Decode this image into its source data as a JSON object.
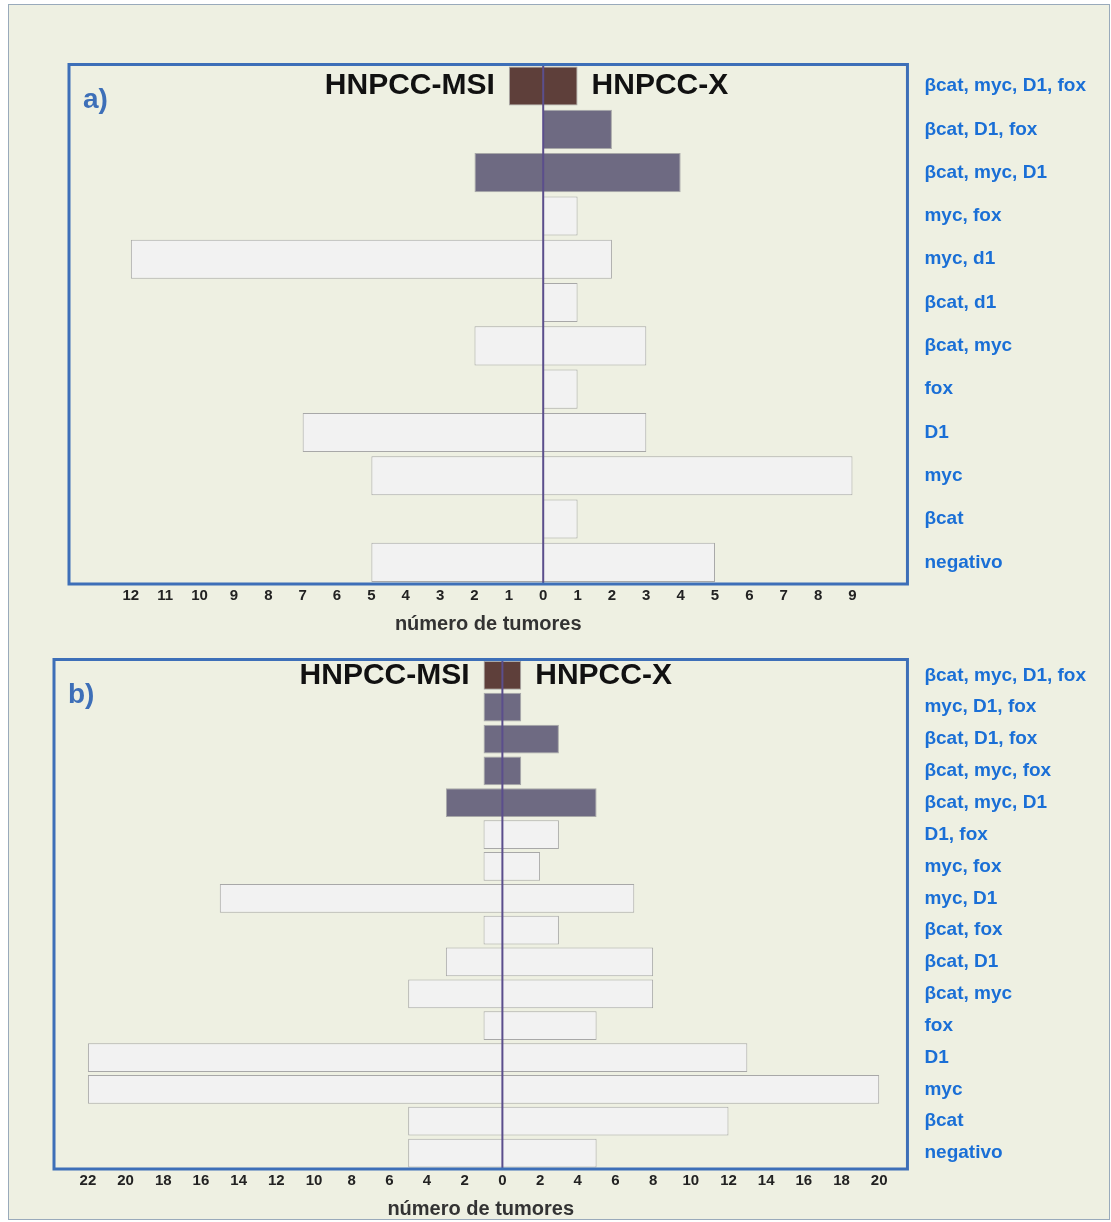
{
  "chart_data": [
    {
      "type": "bar",
      "title": "a)",
      "orientation": "horizontal",
      "stacked": true,
      "grid": false,
      "legend": false,
      "xlabel": "número de tumores",
      "categories": [
        "βcat, myc, D1, fox",
        "βcat, D1, fox",
        "βcat, myc, D1",
        "myc, fox",
        "myc, d1",
        "βcat, d1",
        "βcat, myc",
        "fox",
        "D1",
        "myc",
        "βcat",
        "negativo"
      ],
      "series": [
        {
          "name": "HNPCC-MSI",
          "values": [
            -1,
            0,
            -2,
            0,
            -12,
            0,
            -2,
            0,
            -7,
            -5,
            0,
            -5
          ],
          "colors": [
            "#5e3f3a",
            "#6e6a82",
            "#6e6a82",
            "#f2f2f2",
            "#f2f2f2",
            "#f2f2f2",
            "#f2f2f2",
            "#f2f2f2",
            "#f2f2f2",
            "#f2f2f2",
            "#f2f2f2",
            "#f2f2f2"
          ]
        },
        {
          "name": "HNPCC-X",
          "values": [
            1,
            2,
            4,
            1,
            2,
            1,
            3,
            1,
            3,
            9,
            1,
            5
          ],
          "colors": [
            "#5e3f3a",
            "#6e6a82",
            "#6e6a82",
            "#f2f2f2",
            "#f2f2f2",
            "#f2f2f2",
            "#f2f2f2",
            "#f2f2f2",
            "#f2f2f2",
            "#f2f2f2",
            "#f2f2f2",
            "#f2f2f2"
          ]
        }
      ],
      "xlim": [
        -13.8,
        10.6
      ],
      "xticks": [
        {
          "value": -12,
          "label": "12"
        },
        {
          "value": -11,
          "label": "11"
        },
        {
          "value": -10,
          "label": "10"
        },
        {
          "value": -9,
          "label": "9"
        },
        {
          "value": -8,
          "label": "8"
        },
        {
          "value": -7,
          "label": "7"
        },
        {
          "value": -6,
          "label": "6"
        },
        {
          "value": -5,
          "label": "5"
        },
        {
          "value": -4,
          "label": "4"
        },
        {
          "value": -3,
          "label": "3"
        },
        {
          "value": -2,
          "label": "2"
        },
        {
          "value": -1,
          "label": "1"
        },
        0,
        1,
        2,
        3,
        4,
        5,
        6,
        7,
        8,
        9
      ],
      "ref_lines": [
        {
          "axis": "x",
          "value": 0,
          "color": "#5b4e8c"
        }
      ]
    },
    {
      "type": "bar",
      "title": "b)",
      "orientation": "horizontal",
      "stacked": true,
      "grid": false,
      "legend": false,
      "xlabel": "número de tumores",
      "categories": [
        "βcat, myc, D1, fox",
        "myc, D1, fox",
        "βcat, D1, fox",
        "βcat, myc, fox",
        "βcat, myc, D1",
        "D1, fox",
        "myc, fox",
        "myc, D1",
        "βcat, fox",
        "βcat, D1",
        "βcat, myc",
        "fox",
        "D1",
        "myc",
        "βcat",
        "negativo"
      ],
      "series": [
        {
          "name": "HNPCC-MSI",
          "values": [
            -1,
            -1,
            -1,
            -1,
            -3,
            -1,
            -1,
            -15,
            -1,
            -3,
            -5,
            -1,
            -22,
            -22,
            -5,
            -5
          ],
          "colors": [
            "#5e3f3a",
            "#6e6a82",
            "#6e6a82",
            "#6e6a82",
            "#6e6a82",
            "#f2f2f2",
            "#f2f2f2",
            "#f2f2f2",
            "#f2f2f2",
            "#f2f2f2",
            "#f2f2f2",
            "#f2f2f2",
            "#f2f2f2",
            "#f2f2f2",
            "#f2f2f2",
            "#f2f2f2"
          ]
        },
        {
          "name": "HNPCC-X",
          "values": [
            1,
            1,
            3,
            1,
            5,
            3,
            2,
            7,
            3,
            8,
            8,
            5,
            13,
            20,
            12,
            5
          ],
          "colors": [
            "#5e3f3a",
            "#6e6a82",
            "#6e6a82",
            "#6e6a82",
            "#6e6a82",
            "#f2f2f2",
            "#f2f2f2",
            "#f2f2f2",
            "#f2f2f2",
            "#f2f2f2",
            "#f2f2f2",
            "#f2f2f2",
            "#f2f2f2",
            "#f2f2f2",
            "#f2f2f2",
            "#f2f2f2"
          ]
        }
      ],
      "xlim": [
        -23.8,
        21.5
      ],
      "xticks": [
        {
          "value": -22,
          "label": "22"
        },
        {
          "value": -20,
          "label": "20"
        },
        {
          "value": -18,
          "label": "18"
        },
        {
          "value": -16,
          "label": "16"
        },
        {
          "value": -14,
          "label": "14"
        },
        {
          "value": -12,
          "label": "12"
        },
        {
          "value": -10,
          "label": "10"
        },
        {
          "value": -8,
          "label": "8"
        },
        {
          "value": -6,
          "label": "6"
        },
        {
          "value": -4,
          "label": "4"
        },
        {
          "value": -2,
          "label": "2"
        },
        0,
        2,
        4,
        6,
        8,
        10,
        12,
        14,
        16,
        18,
        20
      ],
      "ref_lines": [
        {
          "axis": "x",
          "value": 0,
          "color": "#5b4e8c"
        }
      ]
    }
  ]
}
